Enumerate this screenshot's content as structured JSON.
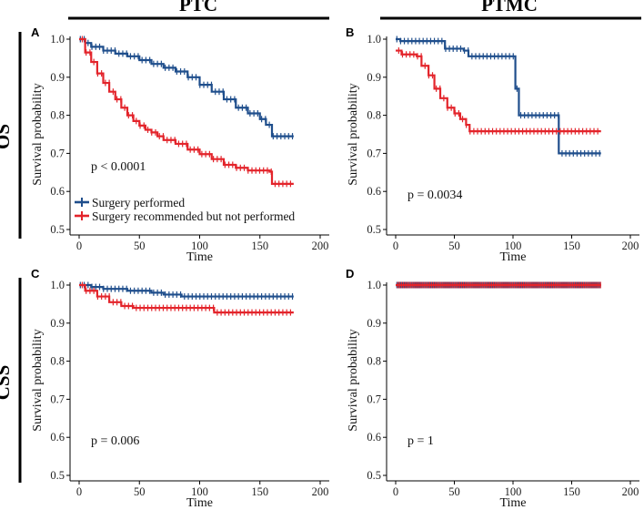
{
  "figure": {
    "column_headers": [
      "PTC",
      "PTMC"
    ],
    "row_labels": [
      "OS",
      "CSS"
    ]
  },
  "colors": {
    "performed": "#1f4e8c",
    "not_performed": "#e3242b"
  },
  "legend": {
    "entries": [
      "Surgery performed",
      "Surgery recommended but not performed"
    ]
  },
  "chart_data": [
    {
      "panel": "A",
      "type": "line",
      "xlabel": "Time",
      "ylabel": "Survival probability",
      "xlim": [
        0,
        200
      ],
      "ylim": [
        0.5,
        1.0
      ],
      "xticks": [
        "0",
        "50",
        "100",
        "150",
        "200"
      ],
      "yticks": [
        "0.5",
        "0.6",
        "0.7",
        "0.8",
        "0.9",
        "1.0"
      ],
      "annotation": "p < 0.0001",
      "series": [
        {
          "name": "Surgery performed",
          "points": [
            [
              0,
              1.0
            ],
            [
              5,
              0.99
            ],
            [
              10,
              0.98
            ],
            [
              20,
              0.97
            ],
            [
              30,
              0.962
            ],
            [
              40,
              0.955
            ],
            [
              50,
              0.945
            ],
            [
              60,
              0.935
            ],
            [
              70,
              0.925
            ],
            [
              80,
              0.915
            ],
            [
              90,
              0.9
            ],
            [
              100,
              0.88
            ],
            [
              110,
              0.862
            ],
            [
              120,
              0.842
            ],
            [
              130,
              0.82
            ],
            [
              140,
              0.805
            ],
            [
              150,
              0.79
            ],
            [
              155,
              0.775
            ],
            [
              160,
              0.745
            ],
            [
              178,
              0.745
            ]
          ]
        },
        {
          "name": "Surgery recommended but not performed",
          "points": [
            [
              0,
              1.0
            ],
            [
              5,
              0.965
            ],
            [
              10,
              0.94
            ],
            [
              15,
              0.91
            ],
            [
              20,
              0.885
            ],
            [
              25,
              0.862
            ],
            [
              30,
              0.842
            ],
            [
              35,
              0.82
            ],
            [
              40,
              0.8
            ],
            [
              45,
              0.785
            ],
            [
              50,
              0.773
            ],
            [
              55,
              0.762
            ],
            [
              60,
              0.755
            ],
            [
              65,
              0.745
            ],
            [
              70,
              0.735
            ],
            [
              80,
              0.725
            ],
            [
              90,
              0.71
            ],
            [
              100,
              0.698
            ],
            [
              110,
              0.685
            ],
            [
              120,
              0.67
            ],
            [
              130,
              0.662
            ],
            [
              140,
              0.655
            ],
            [
              150,
              0.655
            ],
            [
              158,
              0.652
            ],
            [
              160,
              0.62
            ],
            [
              178,
              0.62
            ]
          ]
        }
      ]
    },
    {
      "panel": "B",
      "type": "line",
      "xlabel": "Time",
      "ylabel": "Survival probability",
      "xlim": [
        0,
        200
      ],
      "ylim": [
        0.5,
        1.0
      ],
      "xticks": [
        "0",
        "50",
        "100",
        "150",
        "200"
      ],
      "yticks": [
        "0.5",
        "0.6",
        "0.7",
        "0.8",
        "0.9",
        "1.0"
      ],
      "annotation": "p = 0.0034",
      "series": [
        {
          "name": "Surgery performed",
          "points": [
            [
              0,
              1.0
            ],
            [
              2,
              1.0
            ],
            [
              4,
              0.995
            ],
            [
              38,
              0.995
            ],
            [
              42,
              0.975
            ],
            [
              58,
              0.97
            ],
            [
              62,
              0.955
            ],
            [
              100,
              0.955
            ],
            [
              102,
              0.87
            ],
            [
              105,
              0.8
            ],
            [
              137,
              0.8
            ],
            [
              139,
              0.7
            ],
            [
              175,
              0.7
            ]
          ]
        },
        {
          "name": "Surgery recommended but not performed",
          "points": [
            [
              0,
              0.97
            ],
            [
              5,
              0.96
            ],
            [
              18,
              0.955
            ],
            [
              22,
              0.93
            ],
            [
              28,
              0.905
            ],
            [
              33,
              0.87
            ],
            [
              38,
              0.845
            ],
            [
              44,
              0.82
            ],
            [
              50,
              0.805
            ],
            [
              55,
              0.79
            ],
            [
              60,
              0.775
            ],
            [
              63,
              0.758
            ],
            [
              175,
              0.758
            ]
          ]
        }
      ]
    },
    {
      "panel": "C",
      "type": "line",
      "xlabel": "Time",
      "ylabel": "Survival probability",
      "xlim": [
        0,
        200
      ],
      "ylim": [
        0.5,
        1.0
      ],
      "xticks": [
        "0",
        "50",
        "100",
        "150",
        "200"
      ],
      "yticks": [
        "0.5",
        "0.6",
        "0.7",
        "0.8",
        "0.9",
        "1.0"
      ],
      "annotation": "p = 0.006",
      "series": [
        {
          "name": "Surgery performed",
          "points": [
            [
              0,
              1.0
            ],
            [
              10,
              0.995
            ],
            [
              20,
              0.99
            ],
            [
              40,
              0.985
            ],
            [
              60,
              0.98
            ],
            [
              70,
              0.975
            ],
            [
              85,
              0.97
            ],
            [
              178,
              0.97
            ]
          ]
        },
        {
          "name": "Surgery recommended but not performed",
          "points": [
            [
              0,
              1.0
            ],
            [
              5,
              0.985
            ],
            [
              15,
              0.97
            ],
            [
              25,
              0.955
            ],
            [
              35,
              0.945
            ],
            [
              45,
              0.94
            ],
            [
              110,
              0.94
            ],
            [
              112,
              0.928
            ],
            [
              178,
              0.928
            ]
          ]
        }
      ]
    },
    {
      "panel": "D",
      "type": "line",
      "xlabel": "Time",
      "ylabel": "Survival probability",
      "xlim": [
        0,
        200
      ],
      "ylim": [
        0.5,
        1.0
      ],
      "xticks": [
        "0",
        "50",
        "100",
        "150",
        "200"
      ],
      "yticks": [
        "0.5",
        "0.6",
        "0.7",
        "0.8",
        "0.9",
        "1.0"
      ],
      "annotation": "p = 1",
      "series": [
        {
          "name": "Surgery performed",
          "points": [
            [
              0,
              1.0
            ],
            [
              175,
              1.0
            ]
          ]
        },
        {
          "name": "Surgery recommended but not performed",
          "points": [
            [
              0,
              1.0
            ],
            [
              175,
              1.0
            ]
          ]
        }
      ]
    }
  ]
}
